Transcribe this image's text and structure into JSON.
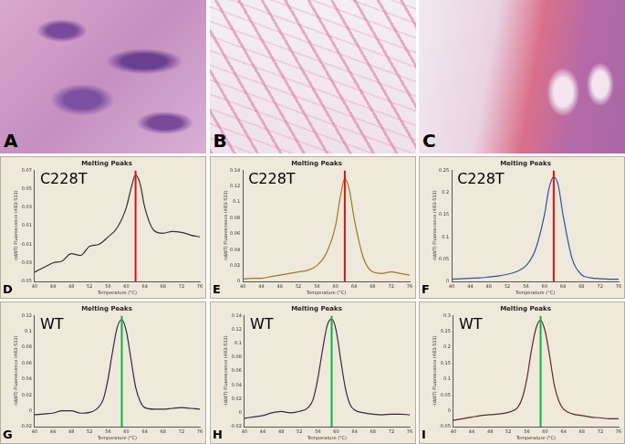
{
  "image_panels": [
    {
      "label": "A"
    },
    {
      "label": "B"
    },
    {
      "label": "C"
    }
  ],
  "chart_data": [
    {
      "type": "line",
      "panel": "D",
      "title": "Melting Peaks",
      "annotation": "C228T",
      "x_label": "Temperature (°C)",
      "y_label": "-(d/dT) Fluorescence (483-533)",
      "x": [
        40,
        42,
        44,
        46,
        48,
        50,
        52,
        54,
        56,
        58,
        60,
        61,
        62,
        63,
        64,
        66,
        68,
        70,
        72,
        74,
        76
      ],
      "series": [
        {
          "color": "#303030",
          "values": [
            -0.04,
            -0.035,
            -0.03,
            -0.028,
            -0.02,
            -0.022,
            -0.012,
            -0.01,
            -0.002,
            0.008,
            0.03,
            0.05,
            0.065,
            0.055,
            0.03,
            0.005,
            0.002,
            0.004,
            0.003,
            0.0,
            -0.002
          ]
        }
      ],
      "peak": {
        "x": 62,
        "color": "#e01010"
      },
      "xlim": [
        40,
        76
      ],
      "xticks": [
        40,
        44,
        48,
        52,
        56,
        60,
        64,
        68,
        72,
        76
      ],
      "ylim": [
        -0.05,
        0.07
      ],
      "yticks": [
        -0.05,
        -0.03,
        -0.01,
        0.01,
        0.03,
        0.05,
        0.07
      ],
      "grid": false
    },
    {
      "type": "line",
      "panel": "E",
      "title": "Melting Peaks",
      "annotation": "C228T",
      "x_label": "Temperature (°C)",
      "y_label": "-(d/dT) Fluorescence (483-533)",
      "x": [
        40,
        42,
        44,
        46,
        48,
        50,
        52,
        54,
        56,
        58,
        60,
        61,
        62,
        63,
        64,
        66,
        68,
        70,
        72,
        74,
        76
      ],
      "series": [
        {
          "color": "#a07a20",
          "values": [
            0.003,
            0.004,
            0.004,
            0.006,
            0.008,
            0.01,
            0.012,
            0.014,
            0.02,
            0.035,
            0.07,
            0.105,
            0.13,
            0.115,
            0.08,
            0.03,
            0.012,
            0.01,
            0.012,
            0.01,
            0.008
          ]
        }
      ],
      "peak": {
        "x": 62,
        "color": "#e01010"
      },
      "xlim": [
        40,
        76
      ],
      "xticks": [
        40,
        44,
        48,
        52,
        56,
        60,
        64,
        68,
        72,
        76
      ],
      "ylim": [
        0,
        0.14
      ],
      "yticks": [
        0,
        0.02,
        0.04,
        0.06,
        0.08,
        0.1,
        0.12,
        0.14
      ],
      "grid": false
    },
    {
      "type": "line",
      "panel": "F",
      "title": "Melting Peaks",
      "annotation": "C228T",
      "x_label": "Temperature (°C)",
      "y_label": "-(d/dT) Fluorescence (483-533)",
      "x": [
        40,
        42,
        44,
        46,
        48,
        50,
        52,
        54,
        56,
        58,
        60,
        61,
        62,
        63,
        64,
        66,
        68,
        70,
        72,
        74,
        76
      ],
      "series": [
        {
          "color": "#3050a0",
          "values": [
            0.005,
            0.006,
            0.007,
            0.008,
            0.01,
            0.012,
            0.016,
            0.022,
            0.035,
            0.07,
            0.15,
            0.21,
            0.235,
            0.215,
            0.15,
            0.05,
            0.015,
            0.008,
            0.006,
            0.005,
            0.005
          ]
        }
      ],
      "peak": {
        "x": 62,
        "color": "#e01010"
      },
      "xlim": [
        40,
        76
      ],
      "xticks": [
        40,
        44,
        48,
        52,
        56,
        60,
        64,
        68,
        72,
        76
      ],
      "ylim": [
        0,
        0.25
      ],
      "yticks": [
        0,
        0.05,
        0.1,
        0.15,
        0.2,
        0.25
      ],
      "grid": false
    },
    {
      "type": "line",
      "panel": "G",
      "title": "Melting Peaks",
      "annotation": "WT",
      "x_label": "Temperature (°C)",
      "y_label": "-(d/dT) Fluorescence (483-533)",
      "x": [
        40,
        42,
        44,
        46,
        48,
        50,
        52,
        54,
        55,
        56,
        57,
        58,
        59,
        60,
        61,
        62,
        63,
        64,
        66,
        68,
        70,
        72,
        74,
        76
      ],
      "series": [
        {
          "color": "#2a2a4a",
          "values": [
            -0.005,
            -0.004,
            -0.003,
            0.0,
            0.0,
            -0.003,
            -0.002,
            0.005,
            0.015,
            0.04,
            0.075,
            0.105,
            0.115,
            0.1,
            0.065,
            0.03,
            0.012,
            0.004,
            0.002,
            0.002,
            0.003,
            0.004,
            0.003,
            0.002
          ]
        }
      ],
      "peak": {
        "x": 59,
        "color": "#10b040"
      },
      "xlim": [
        40,
        76
      ],
      "xticks": [
        40,
        44,
        48,
        52,
        56,
        60,
        64,
        68,
        72,
        76
      ],
      "ylim": [
        -0.02,
        0.12
      ],
      "yticks": [
        -0.02,
        0,
        0.02,
        0.04,
        0.06,
        0.08,
        0.1,
        0.12
      ],
      "grid": false
    },
    {
      "type": "line",
      "panel": "H",
      "title": "Melting Peaks",
      "annotation": "WT",
      "x_label": "Temperature (°C)",
      "y_label": "-(d/dT) Fluorescence (483-533)",
      "x": [
        40,
        42,
        44,
        46,
        48,
        50,
        52,
        54,
        55,
        56,
        57,
        58,
        59,
        60,
        61,
        62,
        63,
        64,
        66,
        68,
        70,
        72,
        74,
        76
      ],
      "series": [
        {
          "color": "#3a2a40",
          "values": [
            -0.008,
            -0.006,
            -0.004,
            0.0,
            0.002,
            0.0,
            0.002,
            0.008,
            0.02,
            0.05,
            0.09,
            0.125,
            0.135,
            0.118,
            0.075,
            0.035,
            0.012,
            0.004,
            0.0,
            -0.002,
            -0.003,
            -0.002,
            -0.002,
            -0.003
          ]
        }
      ],
      "peak": {
        "x": 59,
        "color": "#10b040"
      },
      "xlim": [
        40,
        76
      ],
      "xticks": [
        40,
        44,
        48,
        52,
        56,
        60,
        64,
        68,
        72,
        76
      ],
      "ylim": [
        -0.02,
        0.14
      ],
      "yticks": [
        -0.02,
        0,
        0.02,
        0.04,
        0.06,
        0.08,
        0.1,
        0.12,
        0.14
      ],
      "grid": false
    },
    {
      "type": "line",
      "panel": "I",
      "title": "Melting Peaks",
      "annotation": "WT",
      "x_label": "Temperature (°C)",
      "y_label": "-(d/dT) Fluorescence (483-533)",
      "x": [
        40,
        42,
        44,
        46,
        48,
        50,
        52,
        54,
        55,
        56,
        57,
        58,
        59,
        60,
        61,
        62,
        63,
        64,
        66,
        68,
        70,
        72,
        74,
        76
      ],
      "series": [
        {
          "color": "#5a2a2a",
          "values": [
            -0.03,
            -0.025,
            -0.02,
            -0.015,
            -0.012,
            -0.01,
            -0.005,
            0.01,
            0.04,
            0.1,
            0.19,
            0.26,
            0.285,
            0.25,
            0.17,
            0.08,
            0.03,
            0.005,
            -0.01,
            -0.015,
            -0.02,
            -0.022,
            -0.025,
            -0.025
          ]
        }
      ],
      "peak": {
        "x": 59,
        "color": "#10b040"
      },
      "xlim": [
        40,
        76
      ],
      "xticks": [
        40,
        44,
        48,
        52,
        56,
        60,
        64,
        68,
        72,
        76
      ],
      "ylim": [
        -0.05,
        0.3
      ],
      "yticks": [
        -0.05,
        0,
        0.05,
        0.1,
        0.15,
        0.2,
        0.25,
        0.3
      ],
      "grid": false
    }
  ]
}
